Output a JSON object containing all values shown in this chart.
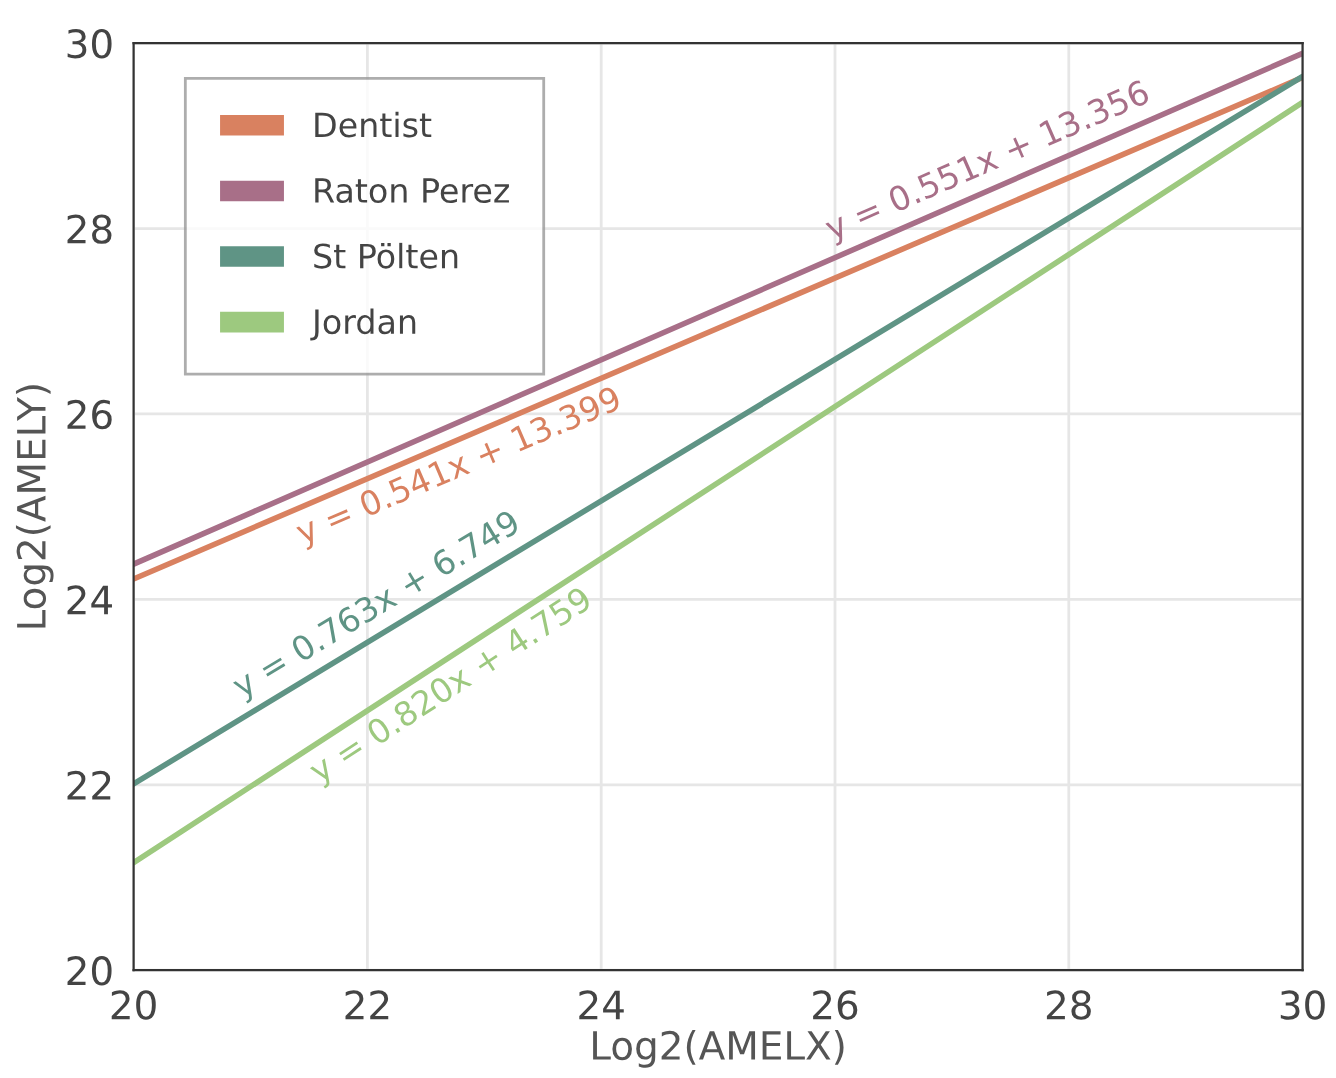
{
  "chart_data": {
    "type": "line",
    "xlabel": "Log2(AMELX)",
    "ylabel": "Log2(AMELY)",
    "x": [
      20,
      30
    ],
    "series": [
      {
        "name": "Dentist",
        "color": "#d98160",
        "values": [
          24.22,
          29.63
        ]
      },
      {
        "name": "Raton Perez",
        "color": "#a86f88",
        "values": [
          24.38,
          29.89
        ]
      },
      {
        "name": "St Pölten",
        "color": "#5f9485",
        "values": [
          22.01,
          29.64
        ]
      },
      {
        "name": "Jordan",
        "color": "#9dc97f",
        "values": [
          21.16,
          29.36
        ]
      }
    ],
    "annotations": [
      "y = 0.551x + 13.356",
      "y = 0.541x + 13.399",
      "y = 0.763x + 6.749",
      "y = 0.820x + 4.759"
    ],
    "xlim": [
      20,
      30
    ],
    "ylim": [
      20,
      30
    ],
    "xticks": [
      20,
      22,
      24,
      26,
      28,
      30
    ],
    "yticks": [
      20,
      22,
      24,
      26,
      28,
      30
    ],
    "grid": true,
    "legend": "top left",
    "line_style": "solid",
    "marker": "none"
  }
}
